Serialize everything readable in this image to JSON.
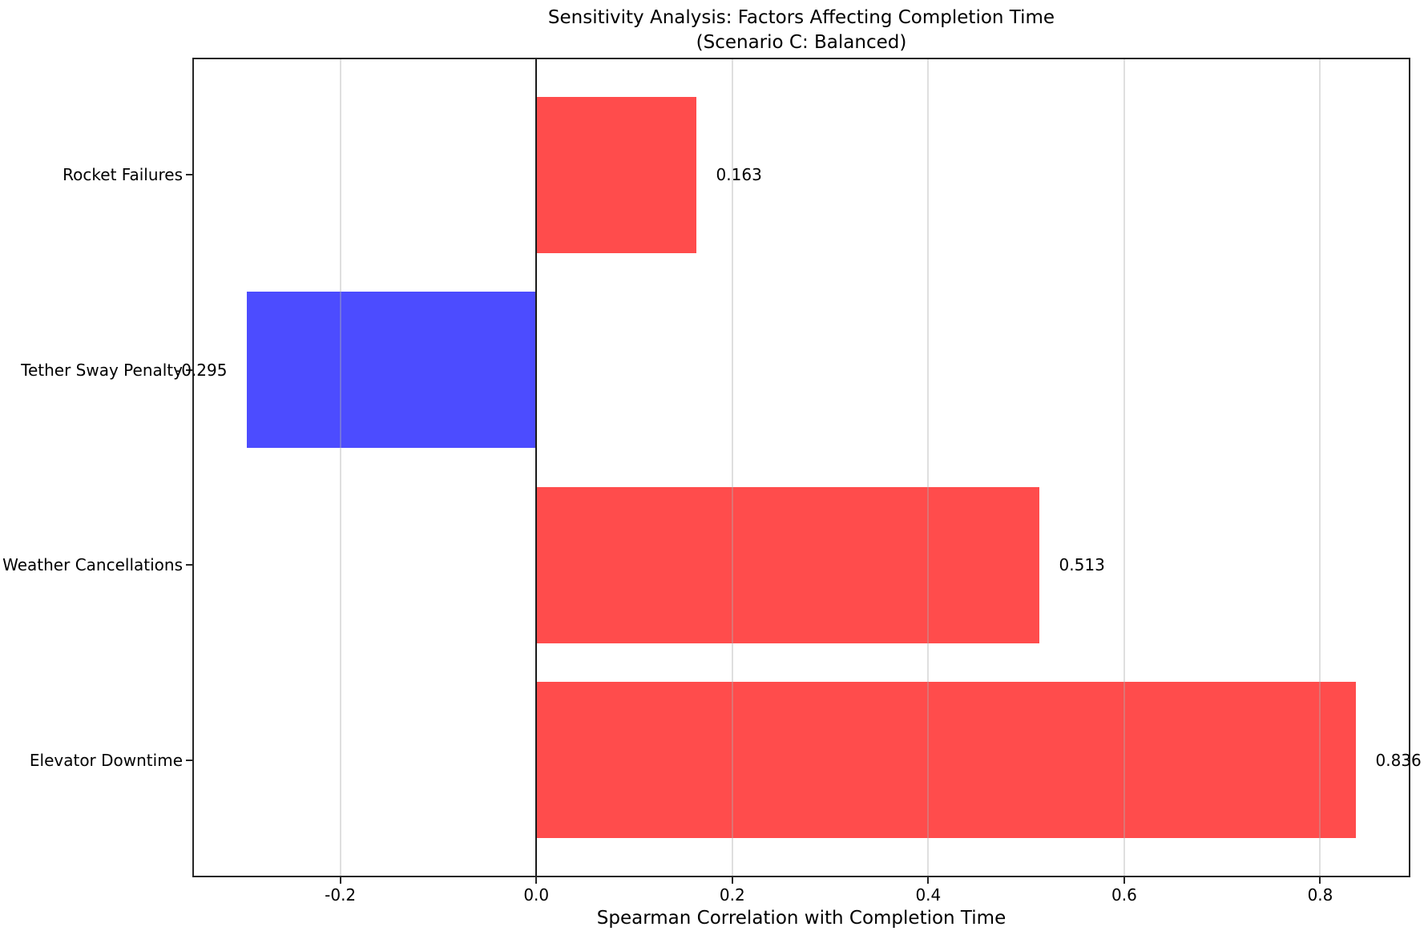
{
  "figure": {
    "title_line1": "Sensitivity Analysis: Factors Affecting Completion Time",
    "title_line2": "(Scenario C: Balanced)"
  },
  "chart_data": {
    "type": "bar",
    "orientation": "horizontal",
    "title": "Sensitivity Analysis: Factors Affecting Completion Time (Scenario C: Balanced)",
    "xlabel": "Spearman Correlation with Completion Time",
    "ylabel": "",
    "categories": [
      "Rocket Failures",
      "Tether Sway Penalty",
      "Weather Cancellations",
      "Elevator Downtime"
    ],
    "category_order": "top-to-bottom",
    "values": [
      0.163,
      -0.295,
      0.513,
      0.836
    ],
    "value_labels": [
      "0.163",
      "-0.295",
      "0.513",
      "0.836"
    ],
    "bar_colors": [
      "#ff4c4c",
      "#4c4cff",
      "#ff4c4c",
      "#ff4c4c"
    ],
    "positive_color": "#ff4c4c",
    "negative_color": "#4c4cff",
    "xlim": [
      -0.351,
      0.892
    ],
    "xticks": [
      -0.2,
      0.0,
      0.2,
      0.4,
      0.6,
      0.8
    ],
    "xtick_labels": [
      "-0.2",
      "0.0",
      "0.2",
      "0.4",
      "0.6",
      "0.8"
    ],
    "grid": true,
    "grid_axis": "x",
    "zero_line": true,
    "legend": false
  },
  "colors": {
    "background": "#ffffff",
    "spine": "#262626",
    "grid": "rgba(176,176,176,0.4)",
    "zero_line": "#1a1a1a",
    "text": "#000000"
  }
}
